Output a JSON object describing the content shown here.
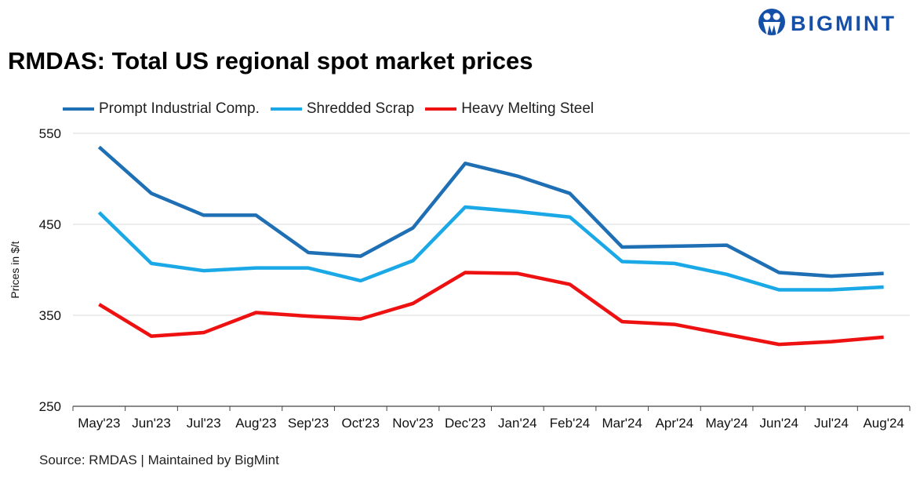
{
  "title": "RMDAS: Total US regional spot market prices",
  "logo_text": "BIGMINT",
  "source": "Source: RMDAS | Maintained by BigMint",
  "chart_data": {
    "type": "line",
    "title": "RMDAS: Total US regional spot market prices",
    "ylabel": "Prices in $/t",
    "xlabel": "",
    "ylim": [
      250,
      550
    ],
    "yticks": [
      250,
      350,
      450,
      550
    ],
    "grid": true,
    "legend_position": "top-left",
    "categories": [
      "May'23",
      "Jun'23",
      "Jul'23",
      "Aug'23",
      "Sep'23",
      "Oct'23",
      "Nov'23",
      "Dec'23",
      "Jan'24",
      "Feb'24",
      "Mar'24",
      "Apr'24",
      "May'24",
      "Jun'24",
      "Jul'24",
      "Aug'24"
    ],
    "series": [
      {
        "name": "Prompt Industrial Comp.",
        "color": "#1f6fb5",
        "values": [
          535,
          484,
          460,
          460,
          419,
          415,
          446,
          517,
          503,
          484,
          425,
          426,
          427,
          397,
          393,
          396
        ]
      },
      {
        "name": "Shredded Scrap",
        "color": "#1aa9e6",
        "values": [
          463,
          407,
          399,
          402,
          402,
          388,
          410,
          469,
          464,
          458,
          409,
          407,
          395,
          378,
          378,
          381
        ]
      },
      {
        "name": "Heavy Melting Steel",
        "color": "#ee1111",
        "values": [
          362,
          327,
          331,
          353,
          349,
          346,
          363,
          397,
          396,
          384,
          343,
          340,
          329,
          318,
          321,
          326
        ]
      }
    ]
  }
}
